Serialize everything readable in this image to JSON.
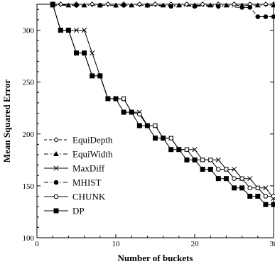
{
  "chart_data": {
    "type": "line",
    "xlabel": "Number of buckets",
    "ylabel": "Mean Squared Error",
    "xlim": [
      0,
      30
    ],
    "ylim": [
      100,
      325
    ],
    "x_ticks": [
      "0",
      "10",
      "20",
      "30"
    ],
    "y_ticks": [
      "100",
      "150",
      "200",
      "250",
      "300"
    ],
    "legend_position": "left-center",
    "grid": false,
    "series": [
      {
        "name": "EquiDepth",
        "marker": "open-diamond",
        "dash": "dashed",
        "x": [
          2,
          3,
          5,
          7,
          9,
          11,
          13,
          15,
          17,
          19,
          21,
          23,
          25,
          27,
          29,
          30
        ],
        "y": [
          325,
          325,
          325,
          325,
          325,
          325,
          325,
          325,
          325,
          325,
          325,
          325,
          325,
          325,
          325,
          325
        ]
      },
      {
        "name": "EquiWidth",
        "marker": "filled-triangle",
        "dash": "dash-dot",
        "x": [
          2,
          4,
          6,
          8,
          10,
          12,
          14,
          16,
          18,
          20,
          22,
          24,
          26,
          28,
          30
        ],
        "y": [
          324,
          324,
          324,
          324,
          324,
          324,
          324,
          324,
          324,
          324,
          324,
          324,
          324,
          324,
          324
        ]
      },
      {
        "name": "MaxDiff",
        "marker": "x",
        "dash": "solid",
        "x": [
          2,
          3,
          4,
          5,
          6,
          7,
          8,
          9,
          10,
          11,
          12,
          13,
          14,
          15,
          16,
          17,
          18,
          19,
          20,
          21,
          22,
          23,
          24,
          25,
          26,
          27,
          28,
          29,
          30
        ],
        "y": [
          325,
          300,
          300,
          300,
          300,
          278,
          256,
          234,
          234,
          234,
          221,
          221,
          208,
          208,
          196,
          196,
          185,
          185,
          185,
          175,
          175,
          175,
          166,
          166,
          157,
          157,
          148,
          148,
          138
        ]
      },
      {
        "name": "MHIST",
        "marker": "filled-circle",
        "dash": "dash-dot",
        "x": [
          2,
          5,
          8,
          11,
          14,
          17,
          20,
          23,
          26,
          27,
          28,
          29,
          30
        ],
        "y": [
          325,
          324,
          324,
          324,
          324,
          323,
          323,
          323,
          322,
          322,
          313,
          313,
          313
        ]
      },
      {
        "name": "CHUNK",
        "marker": "open-circle",
        "dash": "solid",
        "x": [
          2,
          3,
          4,
          5,
          6,
          7,
          8,
          9,
          10,
          11,
          12,
          13,
          14,
          15,
          16,
          17,
          18,
          19,
          20,
          21,
          22,
          23,
          24,
          25,
          26,
          27,
          28,
          29,
          30
        ],
        "y": [
          325,
          300,
          300,
          278,
          278,
          256,
          256,
          234,
          234,
          234,
          221,
          219,
          208,
          208,
          196,
          196,
          185,
          185,
          175,
          175,
          175,
          166,
          166,
          157,
          157,
          148,
          148,
          140,
          140
        ]
      },
      {
        "name": "DP",
        "marker": "filled-square",
        "dash": "solid",
        "x": [
          2,
          3,
          4,
          5,
          6,
          7,
          8,
          9,
          10,
          11,
          12,
          13,
          14,
          15,
          16,
          17,
          18,
          19,
          20,
          21,
          22,
          23,
          24,
          25,
          26,
          27,
          28,
          29,
          30
        ],
        "y": [
          325,
          300,
          300,
          278,
          278,
          256,
          256,
          234,
          234,
          221,
          221,
          208,
          208,
          196,
          196,
          185,
          185,
          175,
          175,
          166,
          166,
          157,
          157,
          148,
          148,
          140,
          140,
          132,
          132
        ]
      }
    ]
  }
}
